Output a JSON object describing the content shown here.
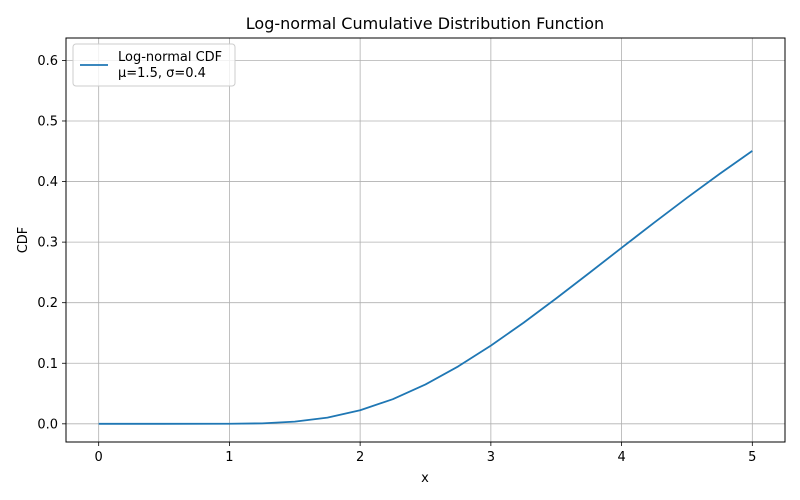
{
  "chart_data": {
    "type": "line",
    "title": "Log-normal Cumulative Distribution Function",
    "xlabel": "x",
    "ylabel": "CDF",
    "xlim": [
      -0.25,
      5.25
    ],
    "ylim": [
      -0.03,
      0.637
    ],
    "xticks": [
      0,
      1,
      2,
      3,
      4,
      5
    ],
    "xtick_labels": [
      "0",
      "1",
      "2",
      "3",
      "4",
      "5"
    ],
    "yticks": [
      0.0,
      0.1,
      0.2,
      0.3,
      0.4,
      0.5,
      0.6
    ],
    "ytick_labels": [
      "0.0",
      "0.1",
      "0.2",
      "0.3",
      "0.4",
      "0.5",
      "0.6"
    ],
    "grid": true,
    "legend_position": "top-left",
    "series": [
      {
        "name": "Log-normal CDF",
        "label_line2": "μ=1.5, σ=0.4",
        "color": "#1f77b4",
        "x": [
          0.0,
          0.5,
          1.0,
          1.25,
          1.5,
          1.75,
          2.0,
          2.25,
          2.5,
          2.75,
          3.0,
          3.25,
          3.5,
          3.75,
          4.0,
          4.25,
          4.5,
          4.75,
          5.0
        ],
        "values": [
          0.0,
          0.0,
          0.0001,
          0.0008,
          0.0036,
          0.0103,
          0.0224,
          0.0407,
          0.065,
          0.0948,
          0.1291,
          0.1669,
          0.2071,
          0.2486,
          0.2906,
          0.3323,
          0.3732,
          0.4127,
          0.4506
        ]
      }
    ]
  }
}
